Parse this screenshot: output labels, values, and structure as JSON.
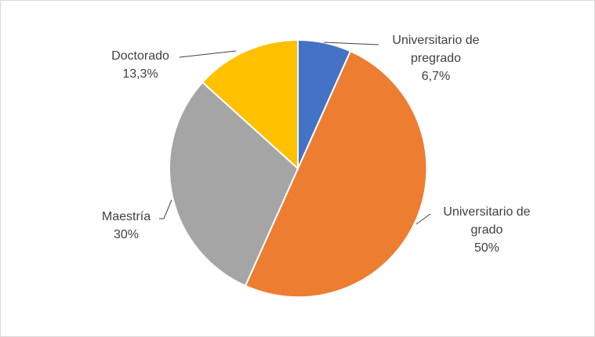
{
  "chart_data": {
    "type": "pie",
    "title": "",
    "slices": [
      {
        "name": "Universitario de pregrado",
        "value": 6.7,
        "value_label": "6,7%",
        "color": "#4472c4",
        "name_lines": [
          "Universitario de",
          "pregrado"
        ]
      },
      {
        "name": "Universitario de grado",
        "value": 50,
        "value_label": "50%",
        "color": "#ed7d31",
        "name_lines": [
          "Universitario de",
          "grado"
        ]
      },
      {
        "name": "Maestría",
        "value": 30,
        "value_label": "30%",
        "color": "#a5a5a5",
        "name_lines": [
          "Maestría"
        ]
      },
      {
        "name": "Doctorado",
        "value": 13.3,
        "value_label": "13,3%",
        "color": "#ffc000",
        "name_lines": [
          "Doctorado"
        ]
      }
    ]
  }
}
